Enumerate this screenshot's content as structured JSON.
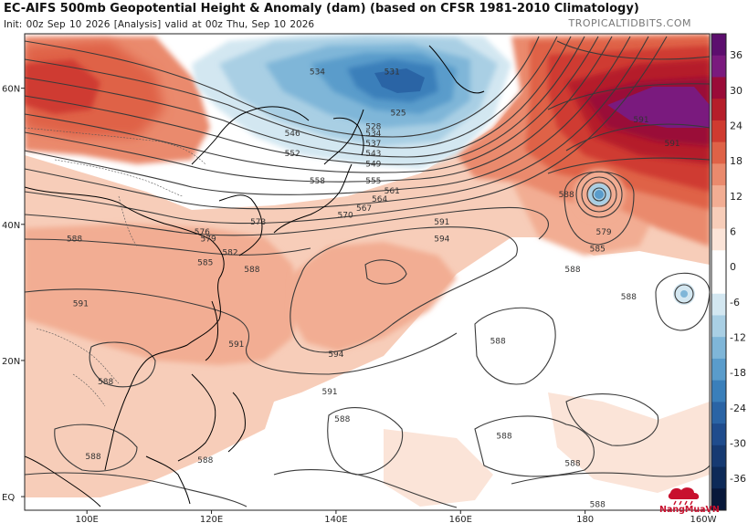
{
  "header": {
    "title": "EC-AIFS 500mb Geopotential Height & Anomaly (dam) (based on CFSR 1981-2010 Climatology)",
    "subtitle": "Init: 00z Sep 10 2026   [Analysis]   valid at 00z Thu, Sep 10 2026",
    "brand": "TROPICALTIDBITS.COM"
  },
  "map": {
    "lat_labels": [
      "60N",
      "40N",
      "20N",
      "EQ"
    ],
    "lon_labels": [
      "100E",
      "120E",
      "140E",
      "160E",
      "180",
      "160W"
    ],
    "contour_labels": [
      {
        "text": "534",
        "lon": 137,
        "lat": 62
      },
      {
        "text": "531",
        "lon": 149,
        "lat": 62
      },
      {
        "text": "525",
        "lon": 150,
        "lat": 56
      },
      {
        "text": "528",
        "lon": 146,
        "lat": 54
      },
      {
        "text": "546",
        "lon": 133,
        "lat": 53
      },
      {
        "text": "534",
        "lon": 146,
        "lat": 53
      },
      {
        "text": "537",
        "lon": 146,
        "lat": 51.5
      },
      {
        "text": "552",
        "lon": 133,
        "lat": 50
      },
      {
        "text": "543",
        "lon": 146,
        "lat": 50
      },
      {
        "text": "549",
        "lon": 146,
        "lat": 48.5
      },
      {
        "text": "558",
        "lon": 137,
        "lat": 46
      },
      {
        "text": "555",
        "lon": 146,
        "lat": 46
      },
      {
        "text": "561",
        "lon": 149,
        "lat": 44.5
      },
      {
        "text": "564",
        "lon": 147,
        "lat": 43.3
      },
      {
        "text": "567",
        "lon": 144.5,
        "lat": 42
      },
      {
        "text": "570",
        "lon": 141.5,
        "lat": 41
      },
      {
        "text": "573",
        "lon": 127.5,
        "lat": 40
      },
      {
        "text": "576",
        "lon": 118.5,
        "lat": 38.5
      },
      {
        "text": "579",
        "lon": 119.5,
        "lat": 37.5
      },
      {
        "text": "582",
        "lon": 123,
        "lat": 35.5
      },
      {
        "text": "585",
        "lon": 119,
        "lat": 34
      },
      {
        "text": "588",
        "lon": 126.5,
        "lat": 33
      },
      {
        "text": "588",
        "lon": 98,
        "lat": 37.5
      },
      {
        "text": "591",
        "lon": 157,
        "lat": 40
      },
      {
        "text": "594",
        "lon": 157,
        "lat": 37.5
      },
      {
        "text": "591",
        "lon": 99,
        "lat": 28
      },
      {
        "text": "591",
        "lon": 124,
        "lat": 22
      },
      {
        "text": "594",
        "lon": 140,
        "lat": 20.5
      },
      {
        "text": "591",
        "lon": 139,
        "lat": 15
      },
      {
        "text": "588",
        "lon": 177,
        "lat": 44
      },
      {
        "text": "591",
        "lon": 189,
        "lat": 55
      },
      {
        "text": "591",
        "lon": 194,
        "lat": 51.5
      },
      {
        "text": "579",
        "lon": 183,
        "lat": 38.5
      },
      {
        "text": "585",
        "lon": 182,
        "lat": 36
      },
      {
        "text": "588",
        "lon": 178,
        "lat": 33
      },
      {
        "text": "588",
        "lon": 187,
        "lat": 29
      },
      {
        "text": "588",
        "lon": 166,
        "lat": 22.5
      },
      {
        "text": "588",
        "lon": 141,
        "lat": 11
      },
      {
        "text": "588",
        "lon": 167,
        "lat": 8.5
      },
      {
        "text": "588",
        "lon": 178,
        "lat": 4.5
      },
      {
        "text": "588",
        "lon": 103,
        "lat": 16.5
      },
      {
        "text": "588",
        "lon": 119,
        "lat": 5
      },
      {
        "text": "588",
        "lon": 101,
        "lat": 5.5
      },
      {
        "text": "588",
        "lon": 182,
        "lat": -1.5
      },
      {
        "text": "588",
        "lon": 152,
        "lat": -4.5
      }
    ]
  },
  "colorbar": {
    "labels": [
      "36",
      "30",
      "24",
      "18",
      "12",
      "6",
      "0",
      "-6",
      "-12",
      "-18",
      "-24",
      "-30",
      "-36"
    ],
    "colors": [
      "#5c0e6e",
      "#7a1a7e",
      "#9a0b38",
      "#b51e2a",
      "#cf3b30",
      "#df6247",
      "#ea8a6d",
      "#f2ad93",
      "#f7cdb9",
      "#fbe4d8",
      "#ffffff",
      "#ffffff",
      "#d3e7f1",
      "#a9cfe4",
      "#7fb6d8",
      "#5a9ccb",
      "#3a7fba",
      "#2a64a5",
      "#1f4c8d",
      "#163a72",
      "#0d2a58",
      "#08183a"
    ]
  },
  "logo": {
    "text": "NangMuaVN"
  }
}
